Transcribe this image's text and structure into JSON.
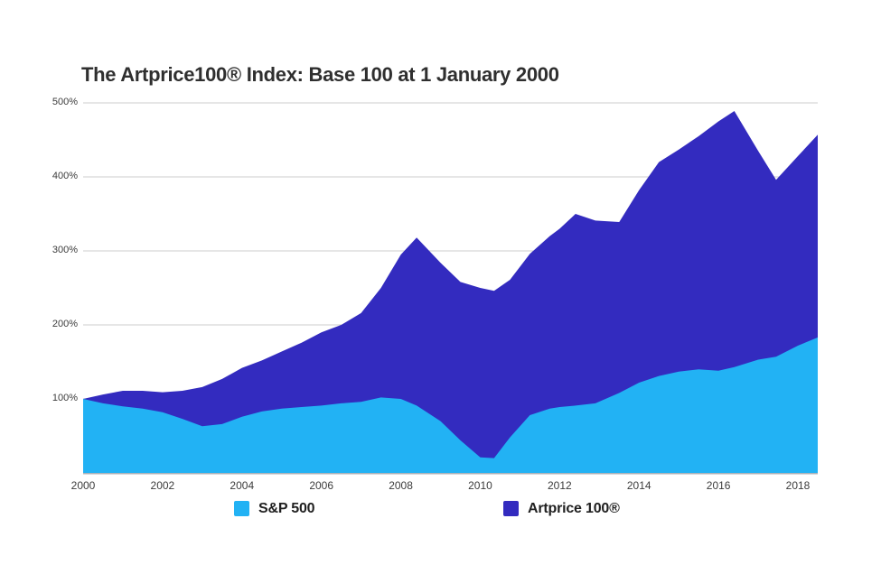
{
  "chart_data": {
    "type": "area",
    "title": "The Artprice100® Index: Base 100 at 1 January 2000",
    "xlabel": "",
    "ylabel": "",
    "xlim": [
      2000,
      2018.5
    ],
    "ylim": [
      0,
      500
    ],
    "grid": "horizontal-only",
    "legend_position": "bottom",
    "x_tick_labels": [
      "2000",
      "2002",
      "2004",
      "2006",
      "2008",
      "2010",
      "2012",
      "2014",
      "2016",
      "2018"
    ],
    "x_tick_years": [
      2000,
      2002,
      2004,
      2006,
      2008,
      2010,
      2012,
      2014,
      2016,
      2018
    ],
    "y_ticks": [
      {
        "value": 100,
        "label": "100%"
      },
      {
        "value": 200,
        "label": "200%"
      },
      {
        "value": 300,
        "label": "300%"
      },
      {
        "value": 400,
        "label": "400%"
      },
      {
        "value": 500,
        "label": "500%"
      }
    ],
    "x": [
      2000,
      2000.5,
      2001,
      2001.5,
      2002,
      2002.5,
      2003,
      2003.5,
      2004,
      2004.5,
      2005,
      2005.5,
      2006,
      2006.5,
      2007,
      2007.5,
      2008,
      2008.4,
      2009,
      2009.5,
      2010,
      2010.35,
      2010.75,
      2011.25,
      2011.75,
      2012,
      2012.4,
      2012.9,
      2013.5,
      2014,
      2014.5,
      2015,
      2015.5,
      2016,
      2016.4,
      2017,
      2017.45,
      2018,
      2018.5
    ],
    "series": [
      {
        "name": "S&P 500",
        "color": "#22B2F4",
        "values": [
          100,
          94,
          90,
          87,
          82,
          73,
          63,
          66,
          76,
          83,
          87,
          89,
          91,
          94,
          96,
          102,
          100,
          91,
          70,
          44,
          21,
          20,
          48,
          78,
          87,
          89,
          91,
          94,
          108,
          122,
          131,
          137,
          140,
          138,
          143,
          153,
          157,
          172,
          183
        ]
      },
      {
        "name": "Artprice 100®",
        "color": "#332BBF",
        "values": [
          100,
          106,
          111,
          111,
          109,
          111,
          116,
          127,
          142,
          152,
          164,
          176,
          190,
          200,
          216,
          250,
          295,
          318,
          284,
          258,
          250,
          246,
          261,
          296,
          320,
          330,
          350,
          341,
          339,
          382,
          420,
          437,
          455,
          475,
          489,
          435,
          396,
          428,
          457
        ]
      }
    ],
    "grid_color": "#CCCCCC",
    "axis_line_color": "#ABB2B8",
    "background_color": "#FFFFFF",
    "title_color": "#2F2F2F"
  }
}
